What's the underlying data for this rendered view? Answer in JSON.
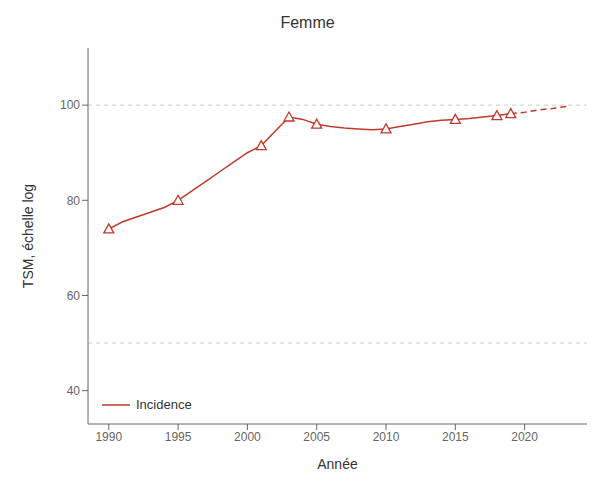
{
  "chart_data": {
    "type": "line",
    "title": "Femme",
    "x_label": "Année",
    "y_label": "TSM, échelle log",
    "xlim": [
      1988.5,
      2024.5
    ],
    "xticks": [
      1990,
      1995,
      2000,
      2005,
      2010,
      2015,
      2020
    ],
    "ylim": [
      33,
      112
    ],
    "yticks": [
      40,
      60,
      80,
      100
    ],
    "grid_lines_y": [
      50,
      100
    ],
    "legend": "lower left",
    "series": [
      {
        "name": "Incidence",
        "type": "line",
        "color": "#c0392b",
        "line_style": "solid",
        "x": [
          1990,
          1991,
          1992,
          1993,
          1994,
          1995,
          1996,
          1997,
          1998,
          1999,
          2000,
          2001,
          2002,
          2003,
          2004,
          2005,
          2006,
          2007,
          2008,
          2009,
          2010,
          2011,
          2012,
          2013,
          2014,
          2015,
          2016,
          2017,
          2018,
          2019
        ],
        "values": [
          74,
          75.5,
          76.5,
          77.5,
          78.5,
          80,
          82,
          84,
          86,
          88,
          90,
          91.5,
          94.5,
          97.5,
          97.0,
          96.0,
          95.5,
          95.2,
          95.0,
          94.8,
          95.0,
          95.5,
          96.0,
          96.5,
          96.8,
          97.0,
          97.2,
          97.5,
          97.8,
          98.2
        ]
      },
      {
        "type": "line",
        "color": "#c0392b",
        "line_style": "dashed",
        "x": [
          2019,
          2020,
          2021,
          2022,
          2023
        ],
        "values": [
          98.2,
          98.5,
          99.0,
          99.3,
          99.7
        ]
      },
      {
        "type": "scatter",
        "color": "#c0392b",
        "marker": "triangle",
        "x": [
          1990,
          1995,
          2001,
          2003,
          2005,
          2010,
          2015,
          2018,
          2019
        ],
        "values": [
          74,
          80,
          91.5,
          97.5,
          96.0,
          95.0,
          97.0,
          97.8,
          98.2
        ]
      }
    ]
  }
}
